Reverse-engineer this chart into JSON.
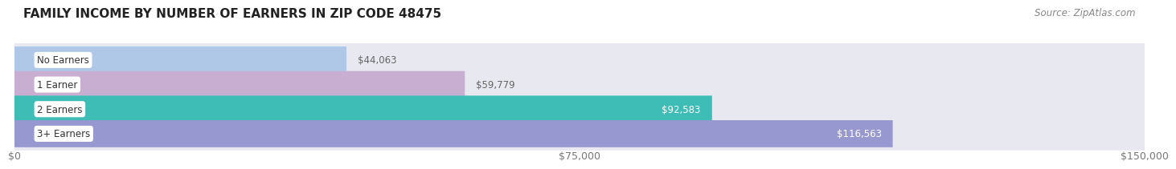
{
  "title": "FAMILY INCOME BY NUMBER OF EARNERS IN ZIP CODE 48475",
  "source": "Source: ZipAtlas.com",
  "categories": [
    "No Earners",
    "1 Earner",
    "2 Earners",
    "3+ Earners"
  ],
  "values": [
    44063,
    59779,
    92583,
    116563
  ],
  "bar_colors": [
    "#b0c8e8",
    "#c8aed0",
    "#3dbdb5",
    "#9898d0"
  ],
  "bar_bg_color": "#e8e8f0",
  "bg_outer_color": "#f0f0f5",
  "xlim": [
    0,
    150000
  ],
  "xticks": [
    0,
    75000,
    150000
  ],
  "xtick_labels": [
    "$0",
    "$75,000",
    "$150,000"
  ],
  "label_color_light": "#ffffff",
  "label_color_dark": "#666666",
  "label_threshold": 75000,
  "title_fontsize": 11,
  "source_fontsize": 8.5,
  "tick_fontsize": 9,
  "bar_label_fontsize": 8.5,
  "category_fontsize": 8.5,
  "background_color": "#ffffff"
}
